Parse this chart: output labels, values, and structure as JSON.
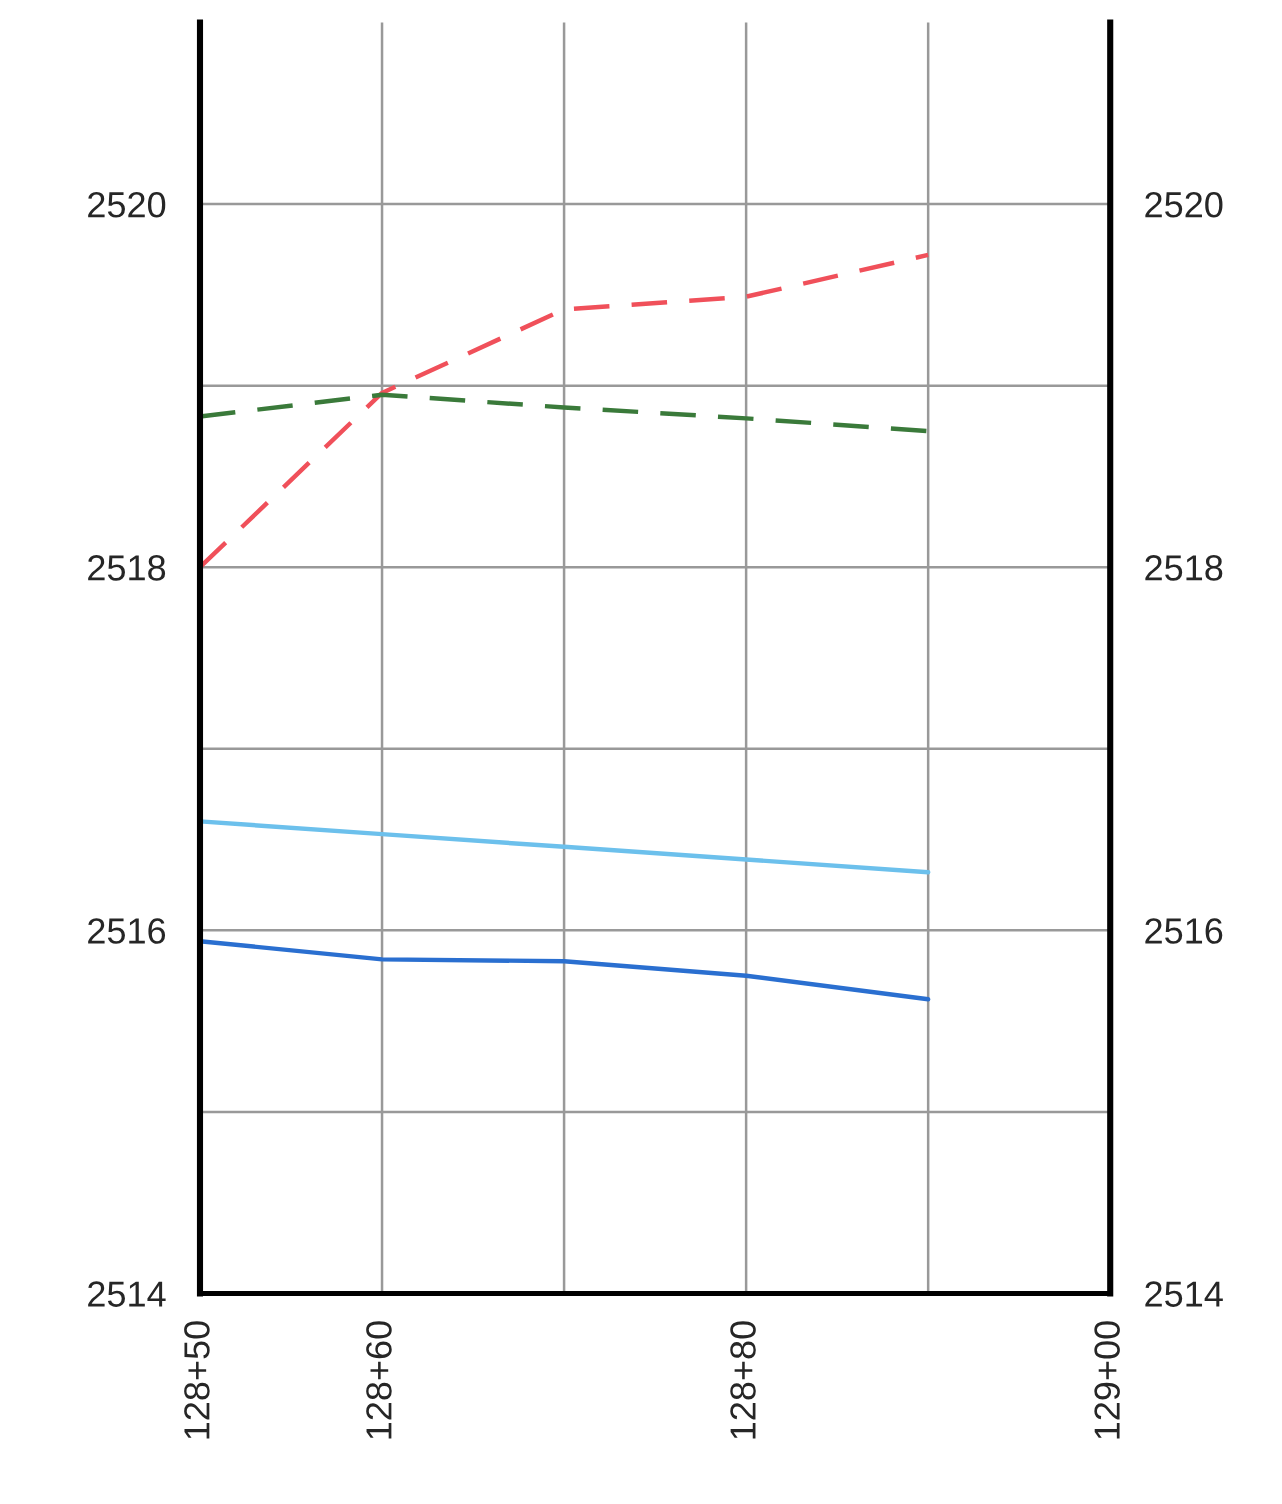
{
  "chart_data": {
    "type": "line",
    "categories": [
      "128+50",
      "128+60",
      null,
      "128+80",
      null,
      "129+00"
    ],
    "ylim": [
      2514,
      2521
    ],
    "yticks": [
      2514,
      {
        "value": 2515,
        "label": null
      },
      2516,
      {
        "value": 2517,
        "label": null
      },
      2518,
      {
        "value": 2519,
        "label": null
      },
      2520
    ],
    "y2lim": [
      2514,
      2521
    ],
    "y2ticks": [
      2514,
      {
        "value": 2515,
        "label": null
      },
      2516,
      {
        "value": 2517,
        "label": null
      },
      2518,
      {
        "value": 2519,
        "label": null
      },
      2520
    ],
    "grid": true,
    "series": [
      {
        "color": "#f0505a",
        "line_style": "dashed",
        "values": [
          2518.0,
          2518.96,
          2519.42,
          2519.49,
          2519.72,
          null
        ]
      },
      {
        "color": "#3a7a3a",
        "line_style": "dashed",
        "values": [
          2518.83,
          2518.95,
          2518.88,
          2518.82,
          2518.75,
          null
        ]
      },
      {
        "color": "#6cc0ec",
        "line_style": "solid",
        "values": [
          2516.6,
          2516.53,
          2516.46,
          2516.39,
          2516.32,
          null
        ]
      },
      {
        "color": "#2a6fd0",
        "line_style": "solid",
        "values": [
          2515.94,
          2515.84,
          2515.83,
          2515.75,
          2515.62,
          null
        ]
      }
    ]
  }
}
